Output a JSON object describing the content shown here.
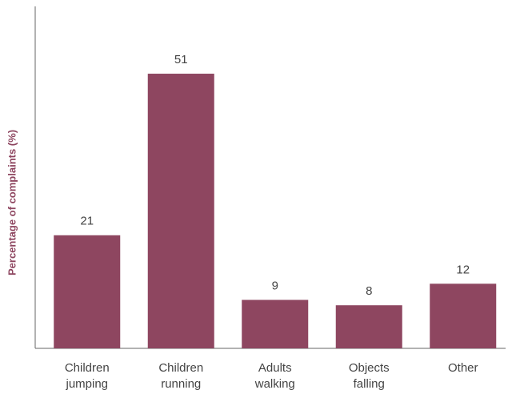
{
  "chart_data": {
    "type": "bar",
    "y_label": "Percentage of complaints (%)",
    "categories": [
      [
        "Children",
        "jumping"
      ],
      [
        "Children",
        "running"
      ],
      [
        "Adults",
        "walking"
      ],
      [
        "Objects",
        "falling"
      ],
      [
        "Other"
      ]
    ],
    "values": [
      21,
      51,
      9,
      8,
      12
    ],
    "color": "#8e4660",
    "ylim": [
      0,
      60
    ]
  }
}
